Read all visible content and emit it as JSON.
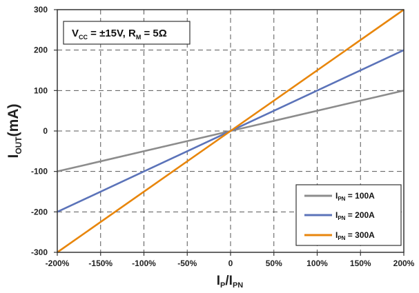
{
  "chart_data": {
    "type": "line",
    "title": "",
    "annotation": {
      "parts": [
        {
          "text": "V",
          "sub": false
        },
        {
          "text": "CC",
          "sub": true
        },
        {
          "text": " = ±15V, R",
          "sub": false
        },
        {
          "text": "M",
          "sub": true
        },
        {
          "text": " = 5Ω",
          "sub": false
        }
      ]
    },
    "ylabel": {
      "main": "I",
      "sub": "OUT",
      "rest": "(mA)"
    },
    "xlabel": {
      "main": "I",
      "sub": "P",
      "mid": "/I",
      "sub2": "PN"
    },
    "xlim": [
      -200,
      200
    ],
    "ylim": [
      -300,
      300
    ],
    "xticks": [
      {
        "value": -200,
        "label": "-200%"
      },
      {
        "value": -150,
        "label": "-150%"
      },
      {
        "value": -100,
        "label": "-100%"
      },
      {
        "value": -50,
        "label": "-50%"
      },
      {
        "value": 0,
        "label": "0"
      },
      {
        "value": 50,
        "label": "50%"
      },
      {
        "value": 100,
        "label": "100%"
      },
      {
        "value": 150,
        "label": "150%"
      },
      {
        "value": 200,
        "label": "200%"
      }
    ],
    "yticks": [
      {
        "value": 300,
        "label": "300"
      },
      {
        "value": 200,
        "label": "200"
      },
      {
        "value": 100,
        "label": "100"
      },
      {
        "value": 0,
        "label": "0"
      },
      {
        "value": -100,
        "label": "-100"
      },
      {
        "value": -200,
        "label": "-200"
      },
      {
        "value": -300,
        "label": "-300"
      }
    ],
    "grid": true,
    "legend_position": "bottom-right",
    "series": [
      {
        "key": "100",
        "legend_main": "I",
        "legend_sub": "PN",
        "legend_rest": " = 100A",
        "color": "#8c8c8c",
        "x": [
          -200,
          200
        ],
        "y": [
          -100,
          100
        ]
      },
      {
        "key": "200",
        "legend_main": "I",
        "legend_sub": "PN",
        "legend_rest": " = 200A",
        "color": "#5b73b9",
        "x": [
          -200,
          200
        ],
        "y": [
          -200,
          200
        ]
      },
      {
        "key": "300",
        "legend_main": "I",
        "legend_sub": "PN",
        "legend_rest": " = 300A",
        "color": "#e8860c",
        "x": [
          -200,
          200
        ],
        "y": [
          -300,
          300
        ]
      }
    ]
  }
}
